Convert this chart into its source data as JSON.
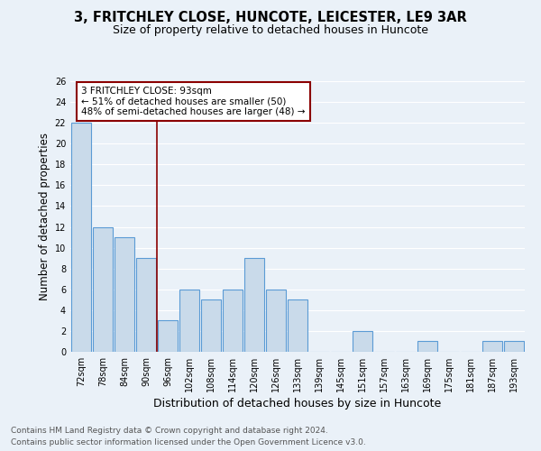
{
  "title1": "3, FRITCHLEY CLOSE, HUNCOTE, LEICESTER, LE9 3AR",
  "title2": "Size of property relative to detached houses in Huncote",
  "xlabel": "Distribution of detached houses by size in Huncote",
  "ylabel": "Number of detached properties",
  "bar_labels": [
    "72sqm",
    "78sqm",
    "84sqm",
    "90sqm",
    "96sqm",
    "102sqm",
    "108sqm",
    "114sqm",
    "120sqm",
    "126sqm",
    "133sqm",
    "139sqm",
    "145sqm",
    "151sqm",
    "157sqm",
    "163sqm",
    "169sqm",
    "175sqm",
    "181sqm",
    "187sqm",
    "193sqm"
  ],
  "bar_values": [
    22,
    12,
    11,
    9,
    3,
    6,
    5,
    6,
    9,
    6,
    5,
    0,
    0,
    2,
    0,
    0,
    1,
    0,
    0,
    1,
    1
  ],
  "bar_color": "#c9daea",
  "bar_edge_color": "#5b9bd5",
  "bar_edge_width": 0.8,
  "vline_x": 3.5,
  "vline_color": "#8b0000",
  "annotation_line1": "3 FRITCHLEY CLOSE: 93sqm",
  "annotation_line2": "← 51% of detached houses are smaller (50)",
  "annotation_line3": "48% of semi-detached houses are larger (48) →",
  "annotation_box_color": "#8b0000",
  "ylim": [
    0,
    26
  ],
  "yticks": [
    0,
    2,
    4,
    6,
    8,
    10,
    12,
    14,
    16,
    18,
    20,
    22,
    24,
    26
  ],
  "footer1": "Contains HM Land Registry data © Crown copyright and database right 2024.",
  "footer2": "Contains public sector information licensed under the Open Government Licence v3.0.",
  "bg_color": "#eaf1f8",
  "plot_bg_color": "#eaf1f8",
  "grid_color": "#ffffff",
  "title1_fontsize": 10.5,
  "title2_fontsize": 9,
  "xlabel_fontsize": 9,
  "ylabel_fontsize": 8.5,
  "tick_fontsize": 7,
  "annotation_fontsize": 7.5,
  "footer_fontsize": 6.5
}
